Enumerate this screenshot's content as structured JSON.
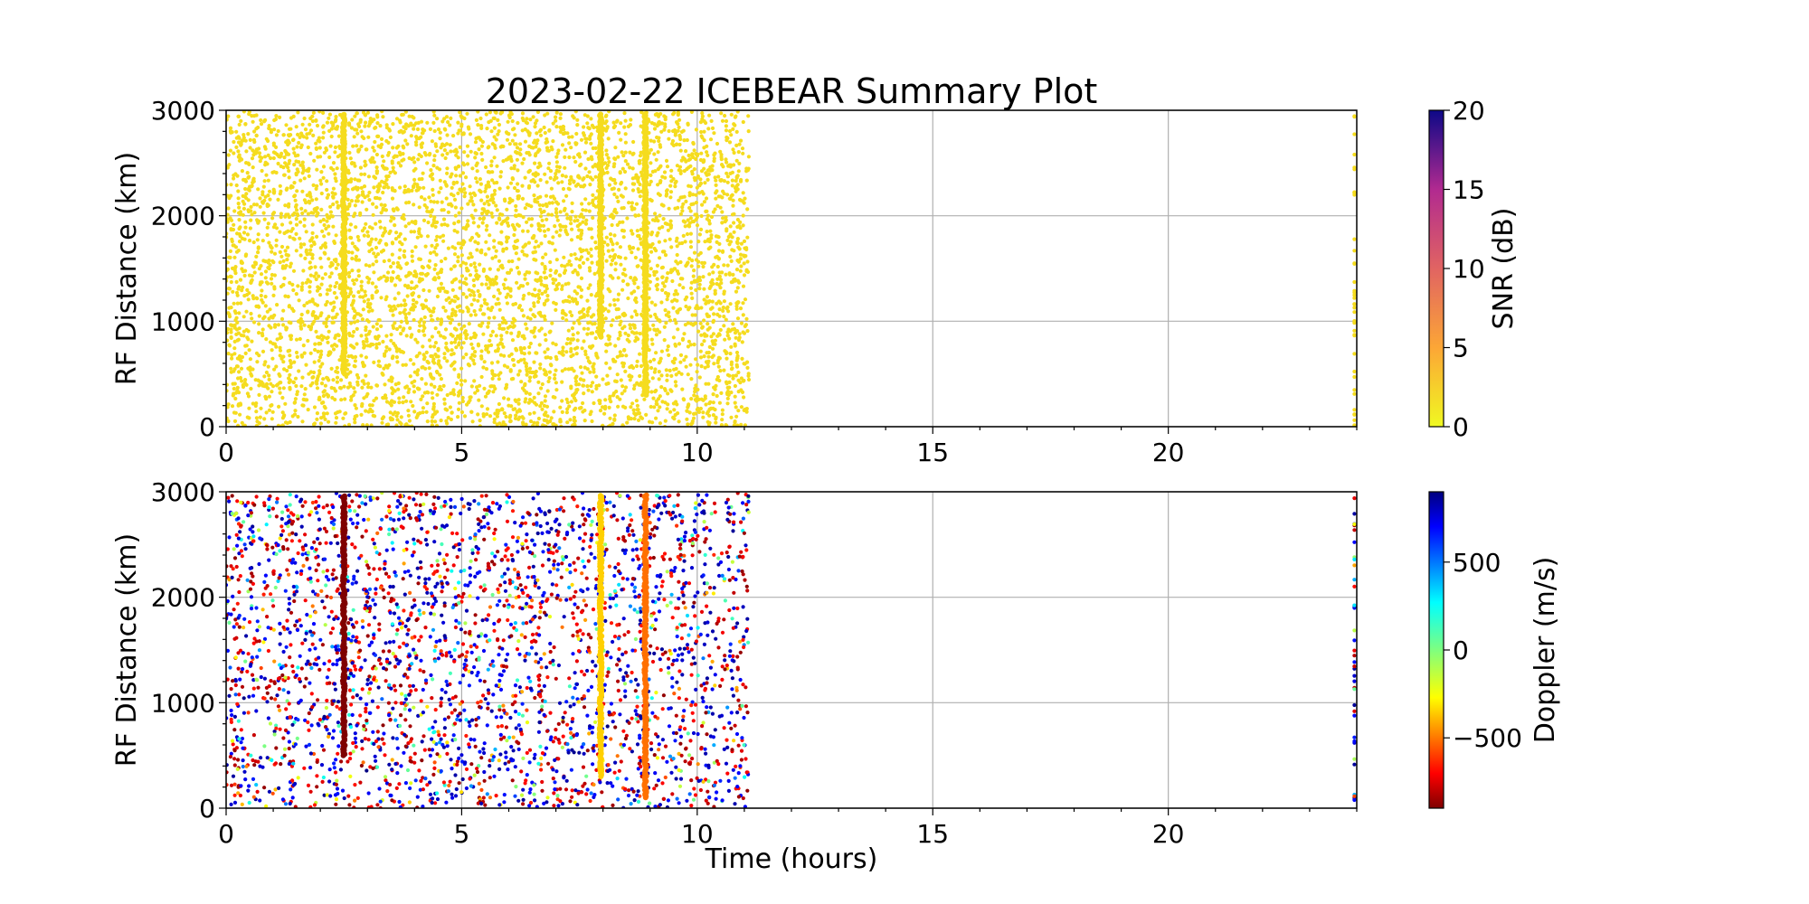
{
  "chart_data": [
    {
      "type": "scatter",
      "title": "2023-02-22 ICEBEAR Summary Plot",
      "xlabel": "",
      "ylabel": "RF Distance (km)",
      "xlim": [
        0,
        24
      ],
      "ylim": [
        0,
        3000
      ],
      "xticks": [
        "0",
        "5",
        "10",
        "15",
        "20"
      ],
      "yticks": [
        "0",
        "1000",
        "2000",
        "3000"
      ],
      "grid": true,
      "color_variable": "SNR",
      "point_color": "#f5dc1e",
      "colorbar": {
        "label": "SNR (dB)",
        "range": [
          0,
          20
        ],
        "ticks": [
          "0",
          "5",
          "10",
          "15",
          "20"
        ],
        "colormap": "plasma_r"
      },
      "data_extent": {
        "x_start": 0,
        "x_end": 11.1,
        "late_x": 23.95
      },
      "streaks": [
        {
          "x": 2.5,
          "y0": 500,
          "y1": 2970
        },
        {
          "x": 7.95,
          "y0": 850,
          "y1": 2970
        },
        {
          "x": 8.9,
          "y0": 300,
          "y1": 2970
        }
      ]
    },
    {
      "type": "scatter",
      "title": "",
      "xlabel": "Time (hours)",
      "ylabel": "RF Distance (km)",
      "xlim": [
        0,
        24
      ],
      "ylim": [
        0,
        3000
      ],
      "xticks": [
        "0",
        "5",
        "10",
        "15",
        "20"
      ],
      "yticks": [
        "0",
        "1000",
        "2000",
        "3000"
      ],
      "grid": true,
      "color_variable": "Doppler",
      "colorbar": {
        "label": "Doppler (m/s)",
        "range": [
          -900,
          900
        ],
        "ticks": [
          {
            "value": 500,
            "label": "500"
          },
          {
            "value": 0,
            "label": "0"
          },
          {
            "value": -500,
            "label": "−500"
          }
        ],
        "colormap": "jet"
      },
      "data_extent": {
        "x_start": 0,
        "x_end": 11.1,
        "late_x": 23.95
      },
      "streaks": [
        {
          "x": 2.5,
          "y0": 500,
          "y1": 2970,
          "color": "#7f0000"
        },
        {
          "x": 7.95,
          "y0": 300,
          "y1": 2970,
          "color": "#ffd000"
        },
        {
          "x": 8.9,
          "y0": 100,
          "y1": 2970,
          "color": "#ff7000"
        }
      ]
    }
  ]
}
